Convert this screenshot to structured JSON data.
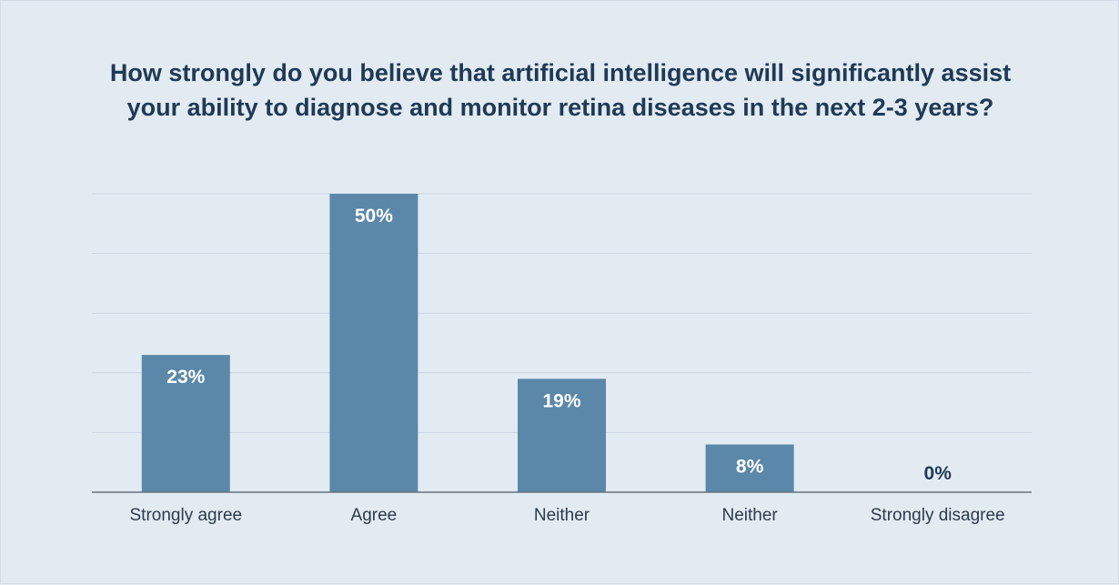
{
  "chart_data": {
    "type": "bar",
    "title_lines": [
      "How strongly do you believe that artificial intelligence will significantly assist",
      "your ability to diagnose and monitor retina diseases in the next 2-3 years?"
    ],
    "categories": [
      "Strongly agree",
      "Agree",
      "Neither",
      "Neither",
      "Strongly disagree"
    ],
    "values": [
      23,
      50,
      19,
      8,
      0
    ],
    "value_labels": [
      "23%",
      "50%",
      "19%",
      "8%",
      "0%"
    ],
    "unit": "%",
    "ylim": [
      0,
      50
    ],
    "grid": true,
    "xlabel": "",
    "ylabel": "",
    "colors": {
      "bar": "#5b88a9",
      "background": "#e3ebf2",
      "title": "#1f3a56"
    }
  }
}
